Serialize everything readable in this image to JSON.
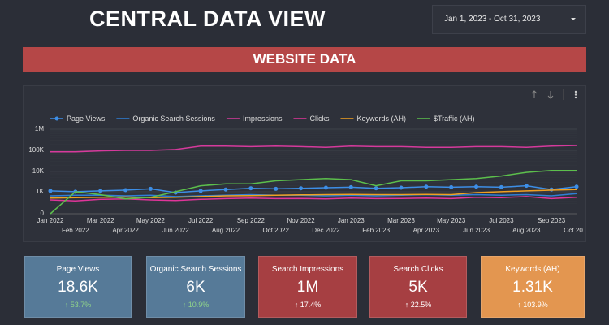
{
  "header": {
    "title": "CENTRAL DATA VIEW",
    "date_range": "Jan 1, 2023 - Oct 31, 2023"
  },
  "banner": "WEBSITE DATA",
  "chart_data": {
    "type": "line",
    "yscale": "symlog",
    "grid": true,
    "categories": [
      "Jan 2022",
      "Feb 2022",
      "Mar 2022",
      "Apr 2022",
      "May 2022",
      "Jun 2022",
      "Jul 2022",
      "Aug 2022",
      "Sep 2022",
      "Oct 2022",
      "Nov 2022",
      "Dec 2022",
      "Jan 2023",
      "Feb 2023",
      "Mar 2023",
      "Apr 2023",
      "May 2023",
      "Jun 2023",
      "Jul 2023",
      "Aug 2023",
      "Sep 2023",
      "Oct 20…"
    ],
    "ylim": [
      0,
      1000000
    ],
    "yticks": [
      0,
      {
        "value": 1000,
        "label": "1K"
      },
      {
        "value": 10000,
        "label": "10K"
      },
      {
        "value": 100000,
        "label": "100K"
      },
      {
        "value": 1000000,
        "label": "1M"
      }
    ],
    "series": [
      {
        "name": "Page Views",
        "color": "#3d8ee6",
        "markers": true,
        "values": [
          1100,
          1000,
          1100,
          1200,
          1400,
          900,
          1100,
          1300,
          1500,
          1400,
          1500,
          1600,
          1700,
          1500,
          1600,
          1800,
          1700,
          1800,
          1700,
          2000,
          1300,
          1800
        ]
      },
      {
        "name": "Organic Search Sessions",
        "color": "#2f7fd6",
        "values": [
          600,
          650,
          650,
          600,
          650,
          550,
          600,
          650,
          700,
          650,
          650,
          600,
          650,
          600,
          650,
          700,
          650,
          700,
          650,
          700,
          600,
          800
        ]
      },
      {
        "name": "Impressions",
        "color": "#d63a9c",
        "values": [
          85000,
          85000,
          95000,
          100000,
          100000,
          110000,
          160000,
          160000,
          150000,
          160000,
          150000,
          140000,
          160000,
          150000,
          150000,
          140000,
          140000,
          150000,
          150000,
          140000,
          160000,
          170000
        ]
      },
      {
        "name": "Clicks",
        "color": "#e0359a",
        "values": [
          350,
          300,
          380,
          400,
          350,
          320,
          380,
          420,
          450,
          420,
          430,
          400,
          450,
          420,
          430,
          450,
          420,
          500,
          480,
          550,
          420,
          500
        ]
      },
      {
        "name": "Keywords (AH)",
        "color": "#f0a020",
        "values": [
          450,
          480,
          500,
          520,
          480,
          500,
          550,
          600,
          620,
          650,
          680,
          700,
          720,
          700,
          700,
          720,
          700,
          900,
          1000,
          1100,
          1200,
          1300
        ]
      },
      {
        "name": "$Traffic (AH)",
        "color": "#5cbf4c",
        "values": [
          0,
          1000,
          700,
          400,
          500,
          1000,
          2000,
          2500,
          2500,
          3500,
          4000,
          4500,
          4000,
          2000,
          3500,
          3500,
          4000,
          4500,
          6000,
          9000,
          11000,
          11000
        ]
      }
    ]
  },
  "scorecards": [
    {
      "label": "Page Views",
      "value": "18.6K",
      "change": "↑ 53.7%"
    },
    {
      "label": "Organic Search Sessions",
      "value": "6K",
      "change": "↑ 10.9%"
    },
    {
      "label": "Search Impressions",
      "value": "1M",
      "change": "↑ 17.4%"
    },
    {
      "label": "Search Clicks",
      "value": "5K",
      "change": "↑ 22.5%"
    },
    {
      "label": "Keywords (AH)",
      "value": "1.31K",
      "change": "↑ 103.9%"
    }
  ]
}
